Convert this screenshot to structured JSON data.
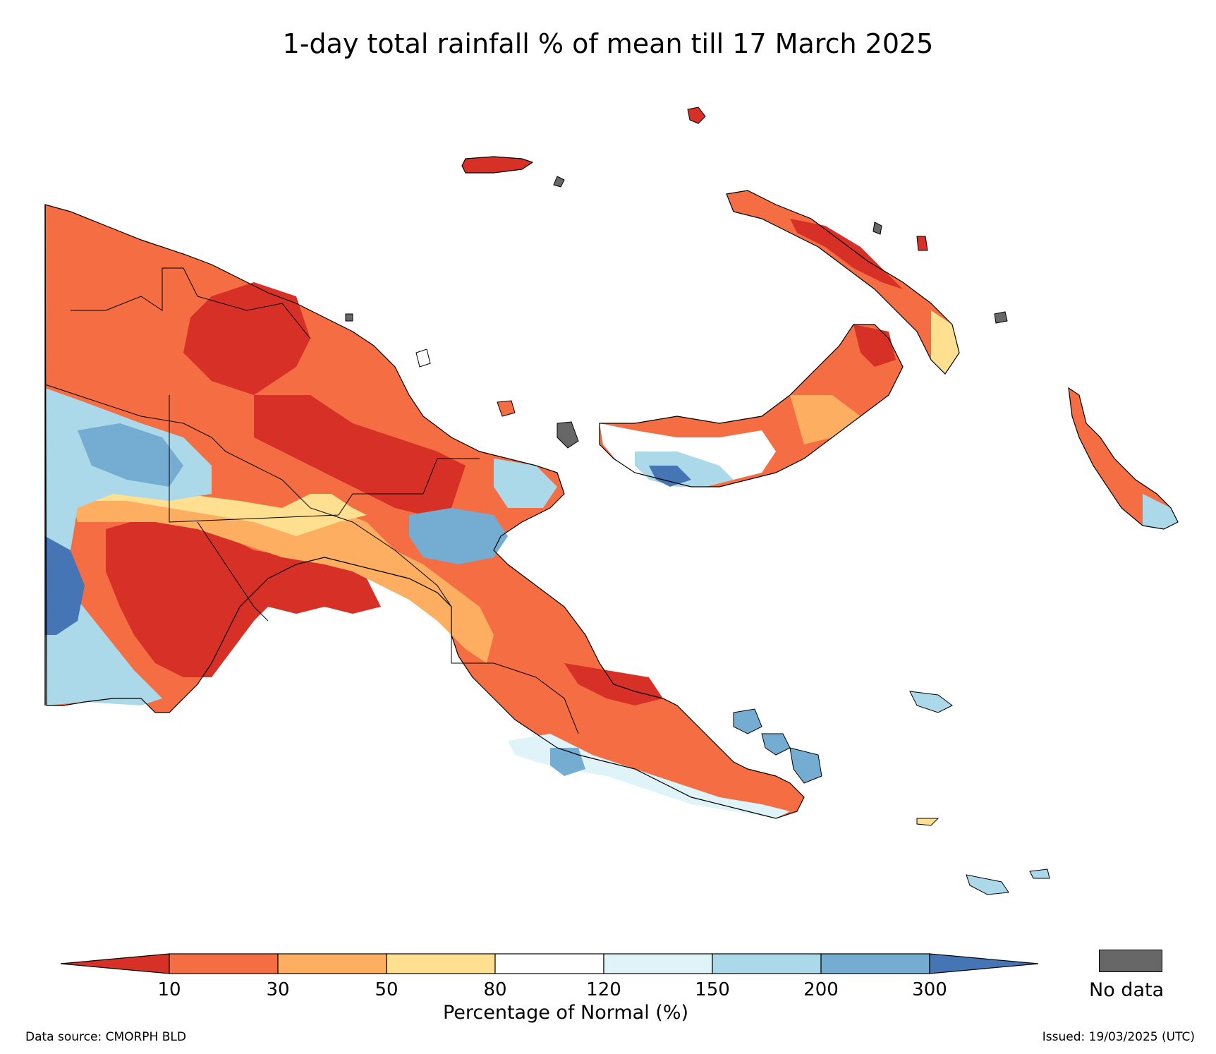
{
  "title": "1-day total rainfall % of mean till 17 March 2025",
  "legend": {
    "ticks": [
      "10",
      "30",
      "50",
      "80",
      "120",
      "150",
      "200",
      "300"
    ],
    "colors": [
      "#d73027",
      "#f46d43",
      "#fdae61",
      "#fee090",
      "#ffffff",
      "#e0f3f8",
      "#abd9e9",
      "#74add1",
      "#4575b4"
    ],
    "axis_label": "Percentage of Normal (%)",
    "nodata_label": "No data",
    "nodata_color": "#676767"
  },
  "footer": {
    "source": "Data source: CMORPH BLD",
    "issued": "Issued: 19/03/2025 (UTC)"
  }
}
